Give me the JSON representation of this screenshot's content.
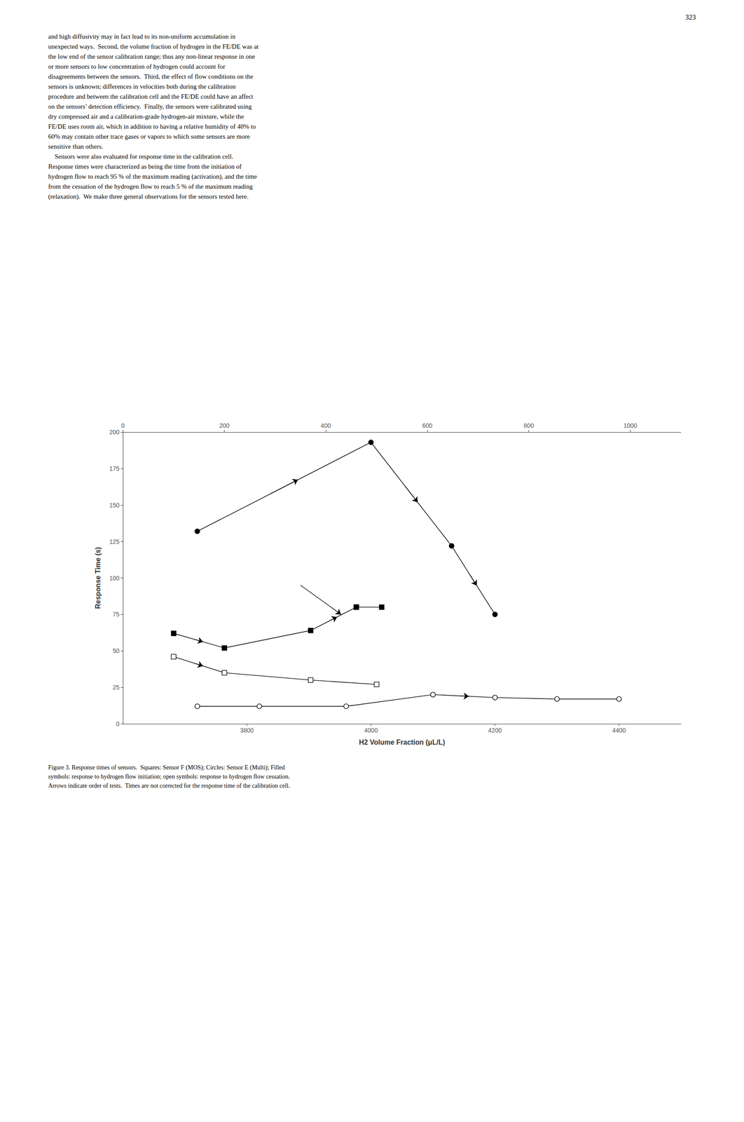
{
  "chart_data": {
    "type": "line",
    "annotations": [
      "323",
      "and high diffusivity may in fact lead to its non-uniform accumulation in\nunexpected ways.  Second, the volume fraction of hydrogen in the FE/DE was at\nthe low end of the sensor calibration range; thus any non-linear response in one\nor more sensors to low concentration of hydrogen could account for\ndisagreements between the sensors.  Third, the effect of flow conditions on the\nsensors is unknown; differences in velocities both during the calibration\nprocedure and between the calibration cell and the FE/DE could have an affect\non the sensors’ detection efficiency.  Finally, the sensors were calibrated using\ndry compressed air and a calibration-grade hydrogen-air mixture, while the\nFE/DE uses room air, which in addition to having a relative humidity of 40% to\n60% may contain other trace gases or vapors to which some sensors are more\nsensitive than others.\n    Sensors were also evaluated for response time in the calibration cell.\nResponse times were characterized as being the time from the initiation of\nhydrogen flow to reach 95 % of the maximum reading (activation), and the time\nfrom the cessation of the hydrogen flow to reach 5 % of the maximum reading\n(relaxation).  We make three general observations for the sensors tested here.",
      "Figure 3. Response times of sensors.  Squares: Sensor F (MOS); Circles: Sensor E (Multi); Filled\nsymbols: response to hydrogen flow initiation; open symbols: response to hydrogen flow cessation.\nArrows indicate order of tests.  Times are not corrected for the response time of the calibration cell."
    ],
    "xlabel": "H2 Volume Fraction (μL/L)",
    "ylabel": "Response Time (s)",
    "xlim": [
      3600,
      4500
    ],
    "xticks": [
      3800,
      4000,
      4200,
      4400
    ],
    "x2lim": [
      0,
      1100
    ],
    "x2ticks": [
      0,
      200,
      400,
      600,
      800,
      1000
    ],
    "ylim": [
      0,
      200
    ],
    "yticks": [
      0,
      25,
      50,
      75,
      100,
      125,
      150,
      175,
      200
    ],
    "grid": false,
    "series": [
      {
        "axis": "x2",
        "marker": "filled_square",
        "color": "#000000",
        "x": [
          100,
          200,
          370,
          460
        ],
        "values": [
          62,
          52,
          64,
          80
        ],
        "arrows": [
          [
            0,
            1
          ],
          [
            2,
            3
          ]
        ]
      },
      {
        "axis": "x2",
        "marker": "filled_square",
        "color": "#000000",
        "x": [
          460,
          510
        ],
        "values": [
          80,
          80
        ]
      },
      {
        "axis": "x2",
        "marker": "open_square",
        "color": "#000000",
        "x": [
          100,
          200,
          370,
          500
        ],
        "values": [
          46,
          35,
          30,
          27
        ],
        "arrows": [
          [
            0,
            1
          ]
        ]
      },
      {
        "axis": "x",
        "marker": "filled_circle",
        "color": "#000000",
        "x": [
          3720,
          4000,
          4130,
          4200
        ],
        "values": [
          132,
          193,
          122,
          75
        ],
        "arrows": [
          [
            0,
            1
          ],
          [
            1,
            2
          ],
          [
            2,
            3
          ]
        ]
      },
      {
        "axis": "x",
        "marker": "open_circle",
        "color": "#000000",
        "x": [
          3720,
          3820,
          3960,
          4100,
          4200,
          4300,
          4400
        ],
        "values": [
          12,
          12,
          12,
          20,
          18,
          17,
          17
        ],
        "arrows": [
          [
            3,
            4
          ]
        ]
      }
    ],
    "arrows": [
      {
        "axis": "x2",
        "x": [
          350,
          430
        ],
        "y": [
          95,
          75
        ]
      }
    ]
  }
}
